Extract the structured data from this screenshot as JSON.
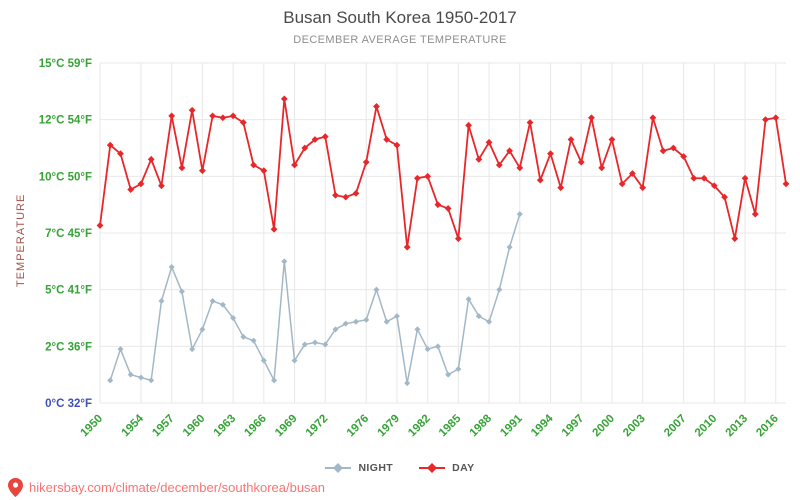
{
  "page": {
    "title": "Busan South Korea 1950-2017",
    "subtitle": "DECEMBER AVERAGE TEMPERATURE",
    "footer_link": "hikersbay.com/climate/december/southkorea/busan"
  },
  "colors": {
    "title": "#4a4a4a",
    "subtitle": "#8e8e8e",
    "axis_label": "#a35248",
    "xtick_green": "#36a336",
    "ytick_green": "#36a336",
    "ytick_blue": "#3f51b5",
    "grid": "#e8e8e8",
    "footer_link": "#f97373",
    "pin": "#e8453c",
    "night": "#a2b8c6",
    "day": "#e8272b"
  },
  "chart_data": {
    "type": "line",
    "title": "Busan South Korea 1950-2017",
    "subtitle": "DECEMBER AVERAGE TEMPERATURE",
    "xlabel": "",
    "ylabel": "TEMPERATURE",
    "ylim": [
      0,
      15
    ],
    "grid": true,
    "legend_position": "bottom",
    "x": [
      1950,
      1951,
      1952,
      1953,
      1954,
      1955,
      1956,
      1957,
      1958,
      1959,
      1960,
      1961,
      1962,
      1963,
      1964,
      1965,
      1966,
      1967,
      1968,
      1969,
      1970,
      1971,
      1972,
      1973,
      1974,
      1975,
      1976,
      1977,
      1978,
      1979,
      1980,
      1981,
      1982,
      1983,
      1984,
      1985,
      1986,
      1987,
      1988,
      1989,
      1990,
      1991,
      1992,
      1993,
      1994,
      1995,
      1996,
      1997,
      1998,
      1999,
      2000,
      2001,
      2002,
      2003,
      2004,
      2005,
      2006,
      2007,
      2008,
      2009,
      2010,
      2011,
      2012,
      2013,
      2014,
      2015,
      2016,
      2017
    ],
    "xticks": [
      1950,
      1954,
      1957,
      1960,
      1963,
      1966,
      1969,
      1972,
      1976,
      1979,
      1982,
      1985,
      1988,
      1991,
      1994,
      1997,
      2000,
      2003,
      2007,
      2010,
      2013,
      2016
    ],
    "yticks": [
      {
        "label": "15°C 59°F",
        "value": 15,
        "color": "#36a336"
      },
      {
        "label": "12°C 54°F",
        "value": 12,
        "color": "#36a336"
      },
      {
        "label": "10°C 50°F",
        "value": 10,
        "color": "#36a336"
      },
      {
        "label": "7°C 45°F",
        "value": 7,
        "color": "#36a336"
      },
      {
        "label": "5°C 41°F",
        "value": 5,
        "color": "#36a336"
      },
      {
        "label": "2°C 36°F",
        "value": 2,
        "color": "#36a336"
      },
      {
        "label": "0°C 32°F",
        "value": 0,
        "color": "#3f51b5"
      }
    ],
    "series": [
      {
        "name": "NIGHT",
        "color": "#a2b8c6",
        "values": [
          null,
          0.8,
          1.9,
          1.0,
          0.9,
          0.8,
          4.4,
          5.8,
          4.9,
          1.9,
          2.9,
          4.4,
          4.2,
          3.5,
          2.5,
          2.3,
          1.5,
          0.8,
          6.0,
          1.5,
          2.1,
          2.2,
          2.1,
          2.9,
          3.2,
          3.3,
          3.4,
          5.0,
          3.3,
          3.6,
          0.7,
          2.9,
          1.9,
          2.0,
          1.0,
          1.2,
          4.5,
          3.6,
          3.3,
          5.0,
          6.5,
          8.0,
          null,
          null,
          null,
          null,
          null,
          null,
          null,
          null,
          null,
          null,
          null,
          null,
          null,
          null,
          null,
          null,
          null,
          null,
          null,
          null,
          null,
          null,
          null,
          null,
          null,
          null
        ]
      },
      {
        "name": "DAY",
        "color": "#e8272b",
        "values": [
          7.4,
          11.1,
          10.8,
          9.3,
          9.6,
          10.6,
          9.5,
          12.2,
          10.3,
          12.5,
          10.2,
          12.2,
          12.1,
          12.2,
          11.9,
          10.4,
          10.2,
          7.2,
          13.1,
          10.4,
          11.0,
          11.3,
          11.4,
          9.0,
          8.9,
          9.1,
          10.5,
          12.7,
          11.3,
          11.1,
          6.5,
          9.9,
          10.0,
          8.5,
          8.3,
          6.8,
          11.8,
          10.6,
          11.2,
          10.4,
          10.9,
          10.3,
          11.9,
          9.8,
          10.8,
          9.4,
          11.3,
          10.5,
          12.1,
          10.3,
          11.3,
          9.6,
          10.1,
          9.4,
          12.1,
          10.9,
          11.0,
          10.7,
          9.9,
          9.9,
          9.5,
          8.9,
          6.8,
          9.9,
          8.0,
          12.0,
          12.1,
          9.6
        ]
      }
    ]
  }
}
